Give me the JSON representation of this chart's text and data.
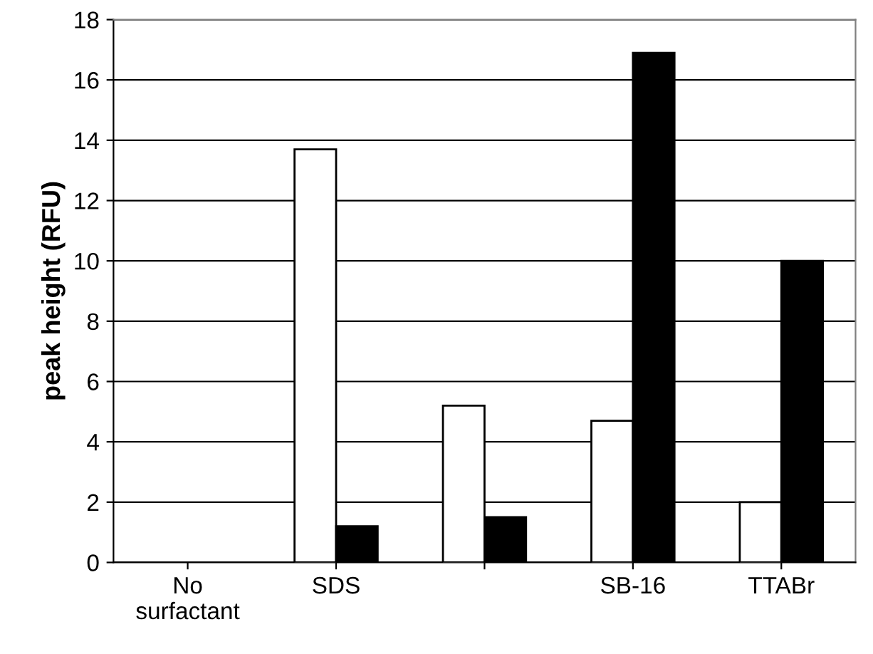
{
  "chart_data": {
    "type": "bar",
    "ylabel": "peak height (RFU)",
    "categories": [
      "No\nsurfactant",
      "SDS",
      null,
      "SB-16",
      "TTABr"
    ],
    "series": [
      {
        "color": "#ffffff",
        "values": [
          0,
          13.7,
          5.2,
          4.7,
          2.0
        ]
      },
      {
        "color": "#000000",
        "values": [
          0,
          1.2,
          1.5,
          16.9,
          10.0
        ]
      }
    ],
    "ylim": [
      0,
      18
    ],
    "yticks": [
      0,
      2,
      4,
      6,
      8,
      10,
      12,
      14,
      16,
      18
    ],
    "grid": "y"
  }
}
